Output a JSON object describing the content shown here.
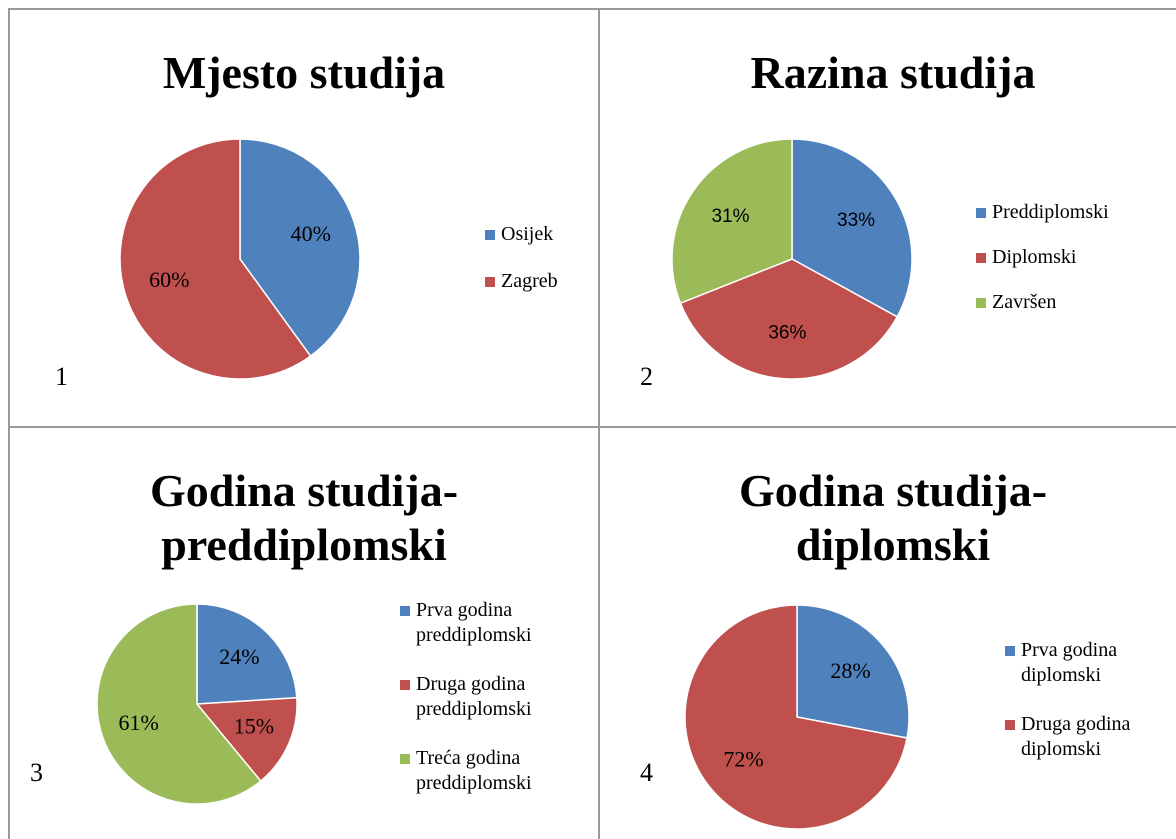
{
  "chart_data": [
    {
      "type": "pie",
      "title": "Mjesto studija",
      "label": "1",
      "categories": [
        "Osijek",
        "Zagreb"
      ],
      "values": [
        40,
        60
      ],
      "value_labels": [
        "40%",
        "60%"
      ],
      "colors": [
        "#4f81bd",
        "#c0504d"
      ]
    },
    {
      "type": "pie",
      "title": "Razina studija",
      "label": "2",
      "categories": [
        "Preddiplomski",
        "Diplomski",
        "Završen"
      ],
      "values": [
        33,
        36,
        31
      ],
      "value_labels": [
        "33%",
        "36%",
        "31%"
      ],
      "colors": [
        "#4f81bd",
        "#c0504d",
        "#9bbb59"
      ]
    },
    {
      "type": "pie",
      "title": "Godina studija-preddiplomski",
      "label": "3",
      "categories": [
        "Prva godina preddiplomski",
        "Druga godina preddiplomski",
        "Treća godina preddiplomski"
      ],
      "values": [
        24,
        15,
        61
      ],
      "value_labels": [
        "24%",
        "15%",
        "61%"
      ],
      "colors": [
        "#4f81bd",
        "#c0504d",
        "#9bbb59"
      ]
    },
    {
      "type": "pie",
      "title": "Godina studija-diplomski",
      "label": "4",
      "categories": [
        "Prva godina diplomski",
        "Druga godina diplomski"
      ],
      "values": [
        28,
        72
      ],
      "value_labels": [
        "28%",
        "72%"
      ],
      "colors": [
        "#4f81bd",
        "#c0504d"
      ]
    }
  ]
}
